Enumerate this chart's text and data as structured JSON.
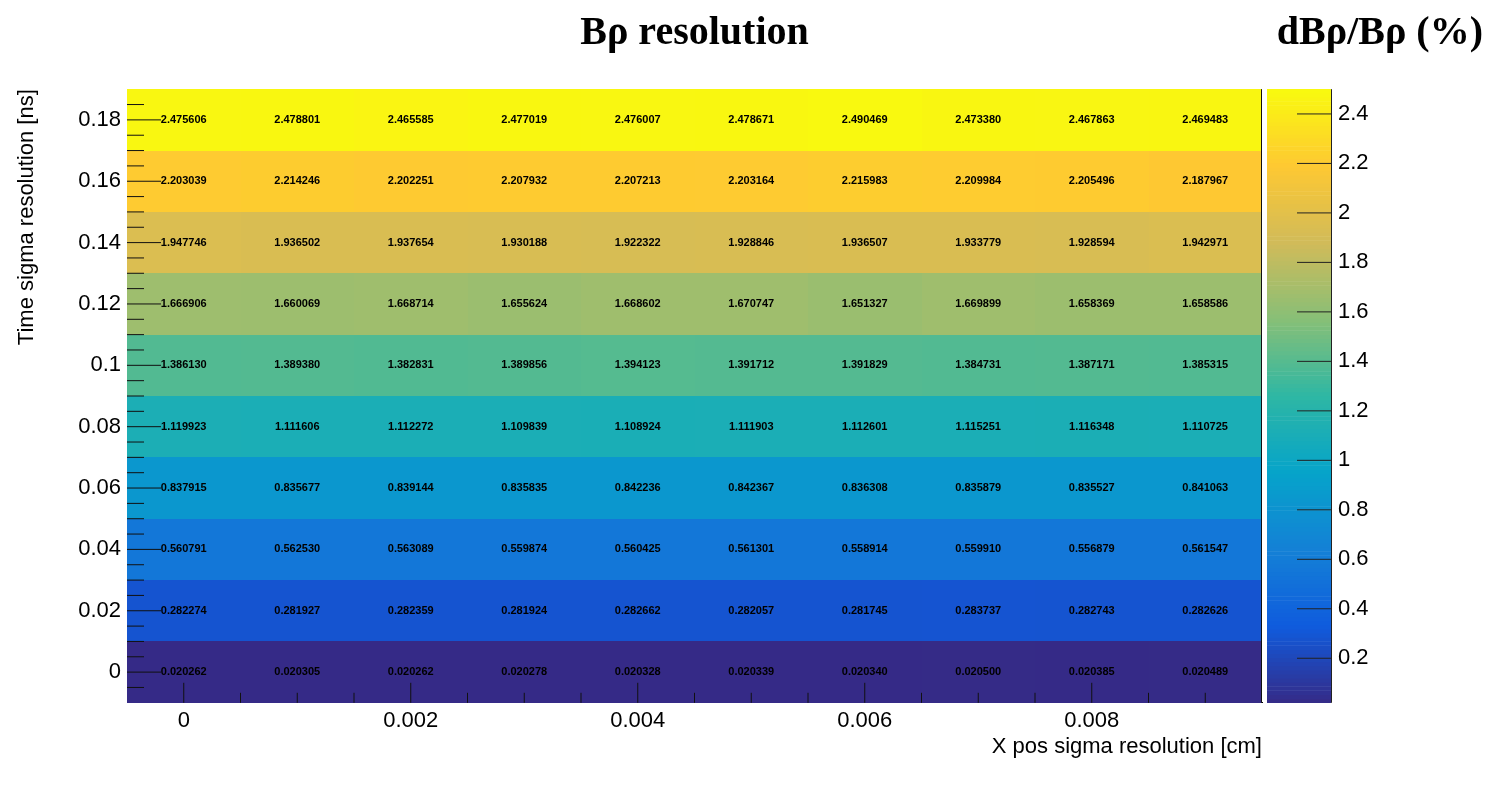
{
  "chart_data": {
    "type": "heatmap",
    "title": "Bρ resolution",
    "xlabel": "X pos sigma resolution [cm]",
    "ylabel": "Time sigma resolution [ns]",
    "clabel": "dBρ/Bρ (%)",
    "x": [
      0,
      0.001,
      0.002,
      0.003,
      0.004,
      0.005,
      0.006,
      0.007,
      0.008,
      0.009
    ],
    "y_categories": [
      "0.18",
      "0.16",
      "0.14",
      "0.12",
      "0.1",
      "0.08",
      "0.06",
      "0.04",
      "0.02",
      "0"
    ],
    "cells": [
      [
        2.475606,
        2.478801,
        2.465585,
        2.477019,
        2.476007,
        2.478671,
        2.490469,
        2.47338,
        2.467863,
        2.469483
      ],
      [
        2.203039,
        2.214246,
        2.202251,
        2.207932,
        2.207213,
        2.203164,
        2.215983,
        2.209984,
        2.205496,
        2.187967
      ],
      [
        1.947746,
        1.936502,
        1.937654,
        1.930188,
        1.922322,
        1.928846,
        1.936507,
        1.933779,
        1.928594,
        1.942971
      ],
      [
        1.666906,
        1.660069,
        1.668714,
        1.655624,
        1.668602,
        1.670747,
        1.651327,
        1.669899,
        1.658369,
        1.658586
      ],
      [
        1.38613,
        1.38938,
        1.382831,
        1.389856,
        1.394123,
        1.391712,
        1.391829,
        1.384731,
        1.387171,
        1.385315
      ],
      [
        1.119923,
        1.111606,
        1.112272,
        1.109839,
        1.108924,
        1.111903,
        1.112601,
        1.115251,
        1.116348,
        1.110725
      ],
      [
        0.837915,
        0.835677,
        0.839144,
        0.835835,
        0.842236,
        0.842367,
        0.836308,
        0.835879,
        0.835527,
        0.841063
      ],
      [
        0.560791,
        0.56253,
        0.563089,
        0.559874,
        0.560425,
        0.561301,
        0.558914,
        0.55991,
        0.556879,
        0.561547
      ],
      [
        0.282274,
        0.281927,
        0.282359,
        0.281924,
        0.282662,
        0.282057,
        0.281745,
        0.283737,
        0.282743,
        0.282626
      ],
      [
        0.020262,
        0.020305,
        0.020262,
        0.020278,
        0.020328,
        0.020339,
        0.02034,
        0.0205,
        0.020385,
        0.020489
      ]
    ],
    "cell_labels": [
      [
        "2.475606",
        "2.478801",
        "2.465585",
        "2.477019",
        "2.476007",
        "2.478671",
        "2.490469",
        "2.473380",
        "2.467863",
        "2.469483"
      ],
      [
        "2.203039",
        "2.214246",
        "2.202251",
        "2.207932",
        "2.207213",
        "2.203164",
        "2.215983",
        "2.209984",
        "2.205496",
        "2.187967"
      ],
      [
        "1.947746",
        "1.936502",
        "1.937654",
        "1.930188",
        "1.922322",
        "1.928846",
        "1.936507",
        "1.933779",
        "1.928594",
        "1.942971"
      ],
      [
        "1.666906",
        "1.660069",
        "1.668714",
        "1.655624",
        "1.668602",
        "1.670747",
        "1.651327",
        "1.669899",
        "1.658369",
        "1.658586"
      ],
      [
        "1.386130",
        "1.389380",
        "1.382831",
        "1.389856",
        "1.394123",
        "1.391712",
        "1.391829",
        "1.384731",
        "1.387171",
        "1.385315"
      ],
      [
        "1.119923",
        "1.111606",
        "1.112272",
        "1.109839",
        "1.108924",
        "1.111903",
        "1.112601",
        "1.115251",
        "1.116348",
        "1.110725"
      ],
      [
        "0.837915",
        "0.835677",
        "0.839144",
        "0.835835",
        "0.842236",
        "0.842367",
        "0.836308",
        "0.835879",
        "0.835527",
        "0.841063"
      ],
      [
        "0.560791",
        "0.562530",
        "0.563089",
        "0.559874",
        "0.560425",
        "0.561301",
        "0.558914",
        "0.559910",
        "0.556879",
        "0.561547"
      ],
      [
        "0.282274",
        "0.281927",
        "0.282359",
        "0.281924",
        "0.282662",
        "0.282057",
        "0.281745",
        "0.283737",
        "0.282743",
        "0.282626"
      ],
      [
        "0.020262",
        "0.020305",
        "0.020262",
        "0.020278",
        "0.020328",
        "0.020339",
        "0.020340",
        "0.020500",
        "0.020385",
        "0.020489"
      ]
    ],
    "clim": [
      0.02,
      2.5
    ],
    "cticks": [
      0.2,
      0.4,
      0.6,
      0.8,
      1,
      1.2,
      1.4,
      1.6,
      1.8,
      2,
      2.2,
      2.4
    ],
    "xlim": [
      -0.0005,
      0.0095
    ],
    "xticks": [
      0,
      {
        "value": 0.0005,
        "label": null
      },
      {
        "value": 0.001,
        "label": null
      },
      {
        "value": 0.0015,
        "label": null
      },
      0.002,
      {
        "value": 0.0025,
        "label": null
      },
      {
        "value": 0.003,
        "label": null
      },
      {
        "value": 0.0035,
        "label": null
      },
      0.004,
      {
        "value": 0.0045,
        "label": null
      },
      {
        "value": 0.005,
        "label": null
      },
      {
        "value": 0.0055,
        "label": null
      },
      0.006,
      {
        "value": 0.0065,
        "label": null
      },
      {
        "value": 0.007,
        "label": null
      },
      {
        "value": 0.0075,
        "label": null
      },
      0.008,
      {
        "value": 0.0085,
        "label": null
      },
      {
        "value": 0.009,
        "label": null
      }
    ]
  }
}
